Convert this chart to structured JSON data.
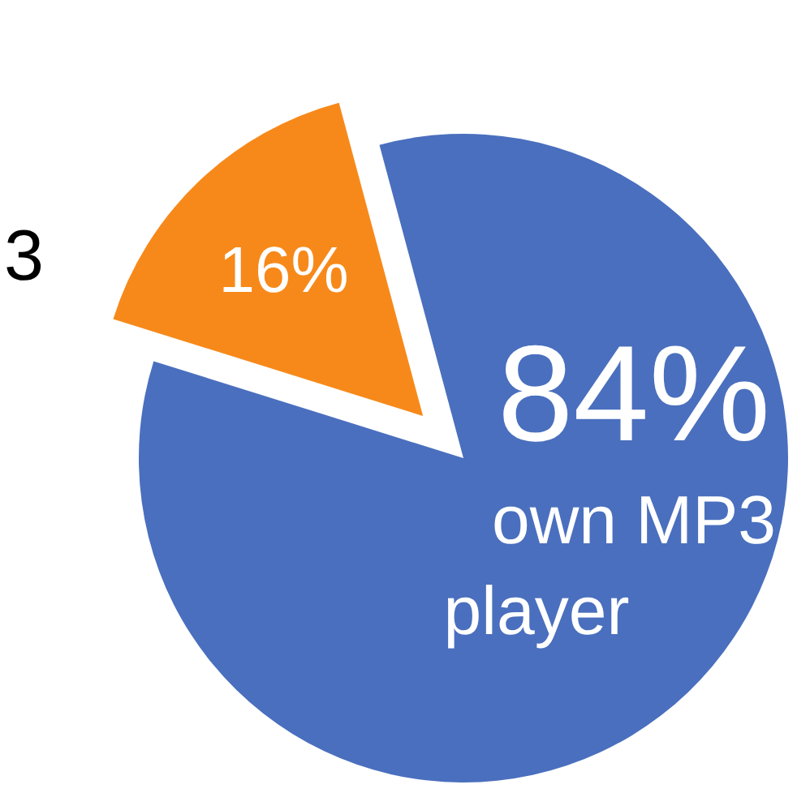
{
  "chart_data": {
    "type": "pie",
    "categories": [
      "3",
      "own MP3 player"
    ],
    "values": [
      16,
      84
    ],
    "colors": [
      "#f7891a",
      "#4a6fbe"
    ],
    "value_labels": [
      "16%",
      "84%"
    ]
  }
}
